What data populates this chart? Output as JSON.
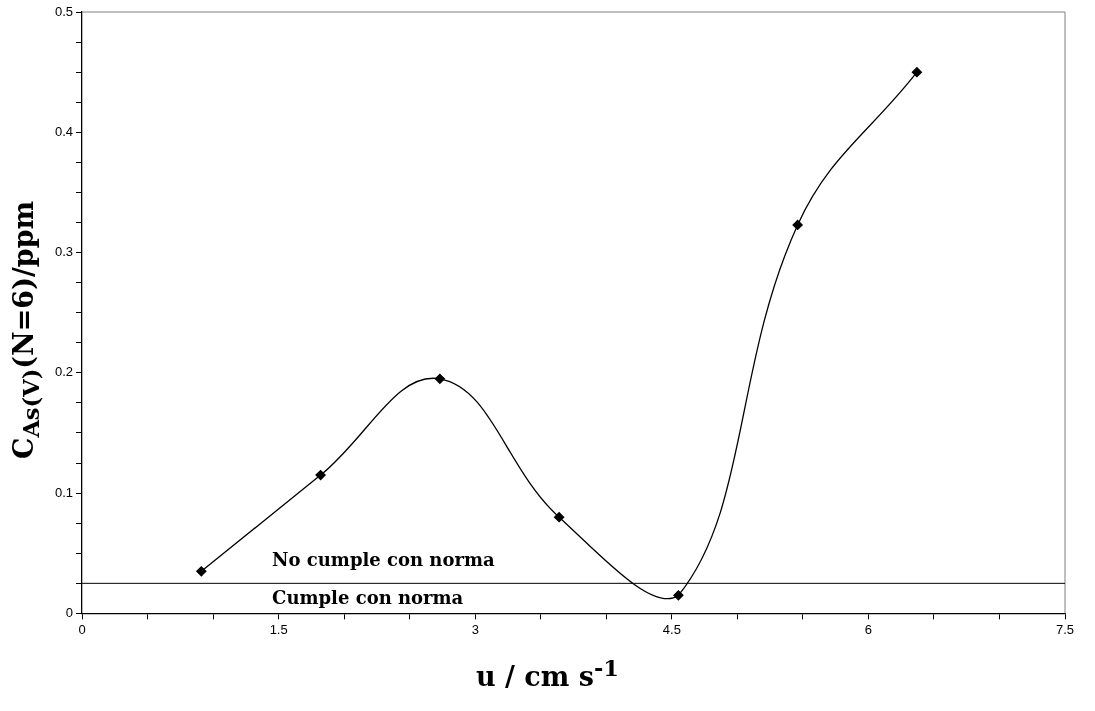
{
  "chart_data": {
    "type": "line",
    "xlabel": "u / cm s$^{-1}$",
    "ylabel": "C$_{As(V)}$(N=6)/ppm",
    "x": [
      0.91,
      1.82,
      2.73,
      3.64,
      4.55,
      5.46,
      6.37
    ],
    "series": [
      {
        "color": "#000000",
        "values": [
          0.035,
          0.115,
          0.195,
          0.08,
          0.015,
          0.323,
          0.45
        ]
      }
    ],
    "xlim": [
      0,
      7.5
    ],
    "xticks": [
      0,
      {
        "value": 0.5,
        "label": null
      },
      {
        "value": 1,
        "label": null
      },
      1.5,
      {
        "value": 2,
        "label": null
      },
      {
        "value": 2.5,
        "label": null
      },
      3,
      {
        "value": 3.5,
        "label": null
      },
      {
        "value": 4,
        "label": null
      },
      4.5,
      {
        "value": 5,
        "label": null
      },
      {
        "value": 5.5,
        "label": null
      },
      6,
      {
        "value": 6.5,
        "label": null
      },
      {
        "value": 7,
        "label": null
      },
      7.5
    ],
    "ylim": [
      0,
      0.5
    ],
    "yticks": [
      0,
      {
        "value": 0.025,
        "label": null
      },
      {
        "value": 0.05,
        "label": null
      },
      {
        "value": 0.075,
        "label": null
      },
      0.1,
      {
        "value": 0.125,
        "label": null
      },
      {
        "value": 0.15,
        "label": null
      },
      {
        "value": 0.175,
        "label": null
      },
      0.2,
      {
        "value": 0.225,
        "label": null
      },
      {
        "value": 0.25,
        "label": null
      },
      {
        "value": 0.275,
        "label": null
      },
      0.3,
      {
        "value": 0.325,
        "label": null
      },
      {
        "value": 0.35,
        "label": null
      },
      {
        "value": 0.375,
        "label": null
      },
      0.4,
      {
        "value": 0.425,
        "label": null
      },
      {
        "value": 0.45,
        "label": null
      },
      {
        "value": 0.475,
        "label": null
      },
      0.5
    ],
    "ref_lines": [
      {
        "axis": "y",
        "value": 0.025,
        "color": "#000000"
      }
    ],
    "annotations": [
      "No cumple con norma",
      "Cumple con norma"
    ],
    "grid": false,
    "legend": false,
    "marker": "diamond",
    "line_style": "solid"
  }
}
